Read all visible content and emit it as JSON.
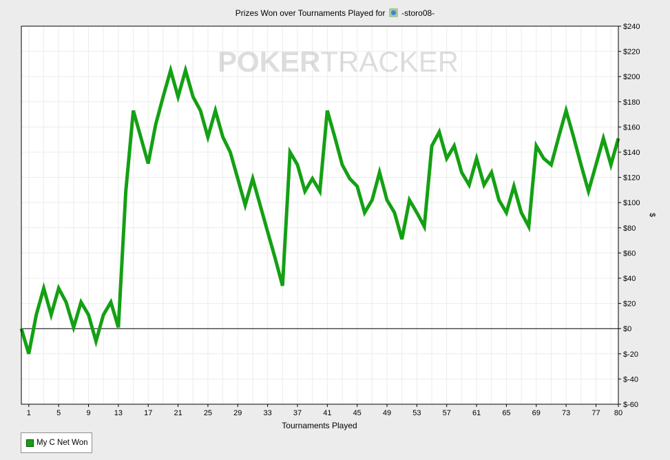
{
  "chart_data": {
    "type": "line",
    "title_prefix": "Prizes Won over Tournaments Played for",
    "player_name": "-storo08-",
    "watermark_bold": "POKER",
    "watermark_light": "TRACKER",
    "xlabel": "Tournaments Played",
    "ylabel": "$",
    "xlim": [
      0,
      80
    ],
    "ylim": [
      -60,
      240
    ],
    "x_ticks": [
      1,
      5,
      9,
      13,
      17,
      21,
      25,
      29,
      33,
      37,
      41,
      45,
      49,
      53,
      57,
      61,
      65,
      69,
      73,
      77,
      80
    ],
    "y_ticks": [
      {
        "value": 240,
        "label": "$240"
      },
      {
        "value": 220,
        "label": "$220"
      },
      {
        "value": 200,
        "label": "$200"
      },
      {
        "value": 180,
        "label": "$180"
      },
      {
        "value": 160,
        "label": "$160"
      },
      {
        "value": 140,
        "label": "$140"
      },
      {
        "value": 120,
        "label": "$120"
      },
      {
        "value": 100,
        "label": "$100"
      },
      {
        "value": 80,
        "label": "$80"
      },
      {
        "value": 60,
        "label": "$60"
      },
      {
        "value": 40,
        "label": "$40"
      },
      {
        "value": 20,
        "label": "$20"
      },
      {
        "value": 0,
        "label": "$0"
      },
      {
        "value": -20,
        "label": "$-20"
      },
      {
        "value": -40,
        "label": "$-40"
      },
      {
        "value": -60,
        "label": "$-60"
      }
    ],
    "grid": true,
    "legend_position": "bottom-left",
    "series": [
      {
        "name": "My C Net Won",
        "color": "#14a014",
        "x": [
          0,
          1,
          2,
          3,
          4,
          5,
          6,
          7,
          8,
          9,
          10,
          11,
          12,
          13,
          14,
          15,
          16,
          17,
          18,
          19,
          20,
          21,
          22,
          23,
          24,
          25,
          26,
          27,
          28,
          29,
          30,
          31,
          32,
          33,
          34,
          35,
          36,
          37,
          38,
          39,
          40,
          41,
          42,
          43,
          44,
          45,
          46,
          47,
          48,
          49,
          50,
          51,
          52,
          53,
          54,
          55,
          56,
          57,
          58,
          59,
          60,
          61,
          62,
          63,
          64,
          65,
          66,
          67,
          68,
          69,
          70,
          71,
          72,
          73,
          74,
          75,
          76,
          77,
          78,
          79,
          80
        ],
        "y": [
          0,
          -20,
          11,
          32,
          11,
          32,
          21,
          1,
          21,
          11,
          -10,
          11,
          21,
          1,
          109,
          173,
          152,
          131,
          162,
          184,
          205,
          184,
          205,
          184,
          173,
          152,
          173,
          152,
          140,
          119,
          98,
          119,
          98,
          77,
          56,
          34,
          140,
          130,
          109,
          119,
          109,
          173,
          152,
          130,
          119,
          113,
          92,
          102,
          124,
          102,
          92,
          71,
          102,
          92,
          81,
          145,
          156,
          135,
          145,
          124,
          114,
          135,
          114,
          124,
          102,
          92,
          113,
          92,
          81,
          145,
          135,
          130,
          152,
          173,
          152,
          130,
          109,
          130,
          151,
          130,
          151
        ]
      }
    ]
  }
}
